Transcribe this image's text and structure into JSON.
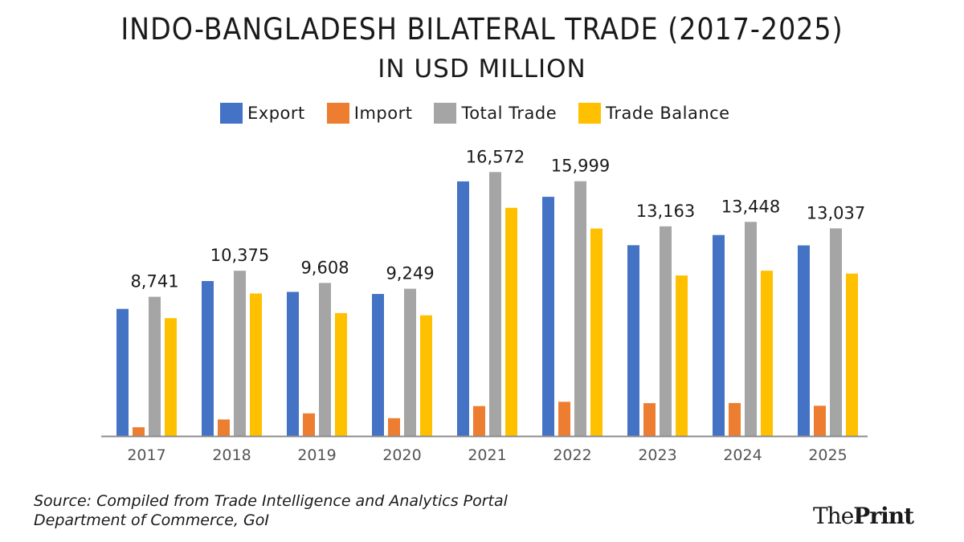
{
  "title": "INDO-BANGLADESH BILATERAL TRADE (2017-2025)",
  "subtitle": "IN USD MILLION",
  "source": {
    "line1": "Source: Compiled from Trade Intelligence and Analytics Portal",
    "line2": "Department of Commerce, GoI"
  },
  "logo": {
    "part1": "The",
    "part2": "Print"
  },
  "chart_data": {
    "type": "bar",
    "categories": [
      "2017",
      "2018",
      "2019",
      "2020",
      "2021",
      "2022",
      "2023",
      "2024",
      "2025"
    ],
    "series": [
      {
        "name": "Export",
        "color": "#4472C4",
        "values": [
          7980,
          9730,
          9050,
          8920,
          15990,
          15020,
          11980,
          12620,
          11970
        ]
      },
      {
        "name": "Import",
        "color": "#ED7D31",
        "values": [
          550,
          1040,
          1420,
          1120,
          1880,
          2150,
          2060,
          2070,
          1900
        ]
      },
      {
        "name": "Total Trade",
        "color": "#A5A5A5",
        "values": [
          8741,
          10375,
          9608,
          9249,
          16572,
          15999,
          13163,
          13448,
          13037
        ]
      },
      {
        "name": "Trade Balance",
        "color": "#FFC000",
        "values": [
          7400,
          8950,
          7720,
          7580,
          14330,
          13030,
          10080,
          10380,
          10200
        ]
      }
    ],
    "data_labels": [
      "8,741",
      "10,375",
      "9,608",
      "9,249",
      "16,572",
      "15,999",
      "13,163",
      "13,448",
      "13,037"
    ],
    "ylim": [
      0,
      18000
    ],
    "grid": false,
    "legend_position": "top"
  }
}
